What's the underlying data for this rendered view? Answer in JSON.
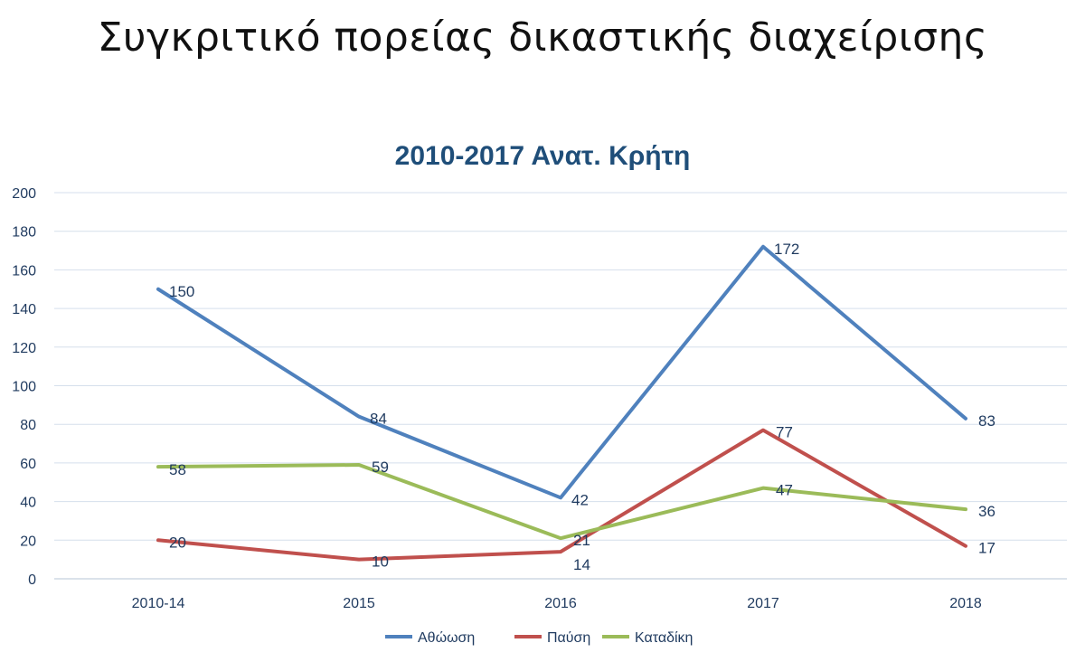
{
  "page": {
    "heading": "Συγκριτικό πορείας δικαστικής διαχείρισης"
  },
  "chart_data": {
    "type": "line",
    "title": "2010-2017 Ανατ. Κρήτη",
    "xlabel": "",
    "ylabel": "",
    "categories": [
      "2010-14",
      "2015",
      "2016",
      "2017",
      "2018"
    ],
    "ylim": [
      0,
      200
    ],
    "yticks": [
      0,
      20,
      40,
      60,
      80,
      100,
      120,
      140,
      160,
      180,
      200
    ],
    "grid": true,
    "legend_position": "bottom",
    "series": [
      {
        "name": "Αθώωση",
        "color": "#4f81bd",
        "values": [
          150,
          84,
          42,
          172,
          83
        ]
      },
      {
        "name": "Παύση",
        "color": "#c0504d",
        "values": [
          20,
          10,
          14,
          77,
          17
        ]
      },
      {
        "name": "Καταδίκη",
        "color": "#9bbb59",
        "values": [
          58,
          59,
          21,
          47,
          36
        ]
      }
    ]
  }
}
